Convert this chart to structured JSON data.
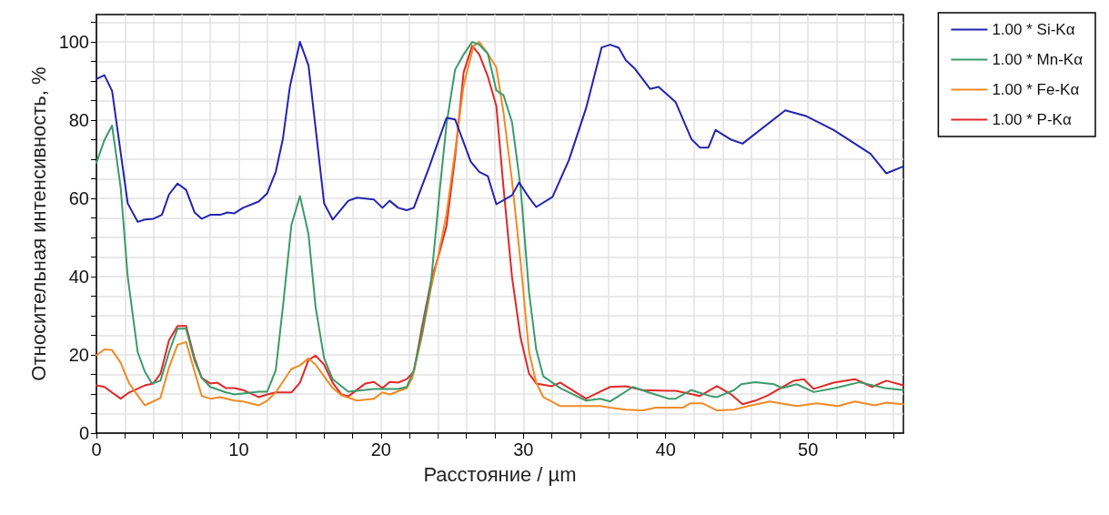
{
  "chart_data": {
    "type": "line",
    "xlabel": "Расстояние / µm",
    "ylabel": "Относительная интенсивность, %",
    "xlim": [
      0,
      56.7
    ],
    "ylim": [
      0,
      107
    ],
    "xticks": [
      0,
      {
        "value": 2,
        "label": null
      },
      {
        "value": 4,
        "label": null
      },
      {
        "value": 6,
        "label": null
      },
      {
        "value": 8,
        "label": null
      },
      10,
      {
        "value": 12,
        "label": null
      },
      {
        "value": 14,
        "label": null
      },
      {
        "value": 16,
        "label": null
      },
      {
        "value": 18,
        "label": null
      },
      20,
      {
        "value": 22,
        "label": null
      },
      {
        "value": 24,
        "label": null
      },
      {
        "value": 26,
        "label": null
      },
      {
        "value": 28,
        "label": null
      },
      30,
      {
        "value": 32,
        "label": null
      },
      {
        "value": 34,
        "label": null
      },
      {
        "value": 36,
        "label": null
      },
      {
        "value": 38,
        "label": null
      },
      40,
      {
        "value": 42,
        "label": null
      },
      {
        "value": 44,
        "label": null
      },
      {
        "value": 46,
        "label": null
      },
      {
        "value": 48,
        "label": null
      },
      50,
      {
        "value": 52,
        "label": null
      },
      {
        "value": 54,
        "label": null
      },
      {
        "value": 56,
        "label": null
      }
    ],
    "yticks": [
      0,
      {
        "value": 5,
        "label": null
      },
      {
        "value": 10,
        "label": null
      },
      {
        "value": 15,
        "label": null
      },
      20,
      {
        "value": 25,
        "label": null
      },
      {
        "value": 30,
        "label": null
      },
      {
        "value": 35,
        "label": null
      },
      40,
      {
        "value": 45,
        "label": null
      },
      {
        "value": 50,
        "label": null
      },
      {
        "value": 55,
        "label": null
      },
      60,
      {
        "value": 65,
        "label": null
      },
      {
        "value": 70,
        "label": null
      },
      {
        "value": 75,
        "label": null
      },
      80,
      {
        "value": 85,
        "label": null
      },
      {
        "value": 90,
        "label": null
      },
      {
        "value": 95,
        "label": null
      },
      100,
      {
        "value": 105,
        "label": null
      }
    ],
    "grid": true,
    "legend": "top right",
    "marker": "none",
    "line_style": "solid",
    "series": [
      {
        "name": "1.00 * Si-Kα",
        "color": "#2323b0",
        "x": [
          0,
          0.56,
          1.1,
          2.2,
          2.9,
          3.4,
          4,
          4.6,
          5.1,
          5.7,
          6.3,
          6.9,
          7.4,
          8,
          8.7,
          9.2,
          9.7,
          10.3,
          11.4,
          12,
          12.6,
          13.1,
          13.6,
          14.3,
          14.9,
          16,
          16.6,
          17.7,
          18.3,
          19.5,
          20.1,
          20.6,
          21.2,
          21.8,
          22.3,
          23.4,
          24.6,
          25.2,
          26.3,
          26.9,
          27.5,
          28.1,
          29.2,
          29.7,
          30.4,
          30.9,
          32.05,
          33.2,
          34.4,
          35.5,
          36.1,
          36.7,
          37.2,
          37.8,
          38.9,
          39.5,
          40.7,
          41.8,
          42.4,
          43,
          43.5,
          44.6,
          45.4,
          48.4,
          49.9,
          51.8,
          54.4,
          55.5,
          56.7
        ],
        "values": [
          90.5,
          91.5,
          87.5,
          58.7,
          54,
          54.6,
          54.8,
          55.8,
          61,
          63.8,
          62.2,
          56.4,
          54.8,
          55.8,
          55.8,
          56.4,
          56.2,
          57.6,
          59.2,
          61.3,
          66.8,
          75.2,
          88.7,
          100,
          94,
          58.7,
          54.6,
          59.4,
          60.2,
          59.7,
          57.6,
          59.4,
          57.6,
          57,
          57.6,
          68.2,
          80.6,
          80.2,
          69.4,
          66.8,
          65.7,
          58.5,
          60.8,
          64.1,
          60.2,
          57.8,
          60.4,
          69.8,
          83,
          98.6,
          99.3,
          98.5,
          95.3,
          93.3,
          88,
          88.5,
          84.6,
          75.2,
          73,
          73,
          77.5,
          75,
          74,
          82.5,
          81,
          77.5,
          71.4,
          66.4,
          68.2
        ]
      },
      {
        "name": "1.00 * Mn-Kα",
        "color": "#3b9a6b",
        "x": [
          0,
          0.56,
          1.1,
          1.7,
          2.2,
          2.9,
          3.4,
          3.9,
          4.5,
          5.1,
          5.7,
          6.3,
          6.9,
          7.4,
          8,
          9.1,
          9.7,
          11.4,
          12,
          12.6,
          13.1,
          13.7,
          14.3,
          14.9,
          15.4,
          16,
          16.6,
          17.7,
          19.5,
          21.2,
          21.8,
          22.3,
          22.9,
          23.5,
          24.1,
          24.6,
          25.2,
          25.8,
          26.4,
          26.9,
          27.5,
          28.1,
          28.6,
          29.2,
          29.8,
          30.4,
          30.9,
          31.4,
          32.6,
          34.4,
          35.4,
          36.1,
          37.7,
          38.8,
          40.2,
          40.7,
          41.8,
          43.1,
          43.6,
          44.8,
          45.3,
          46.3,
          47.6,
          48.2,
          49.2,
          50.4,
          51.9,
          53.6,
          55.4,
          56.7
        ],
        "values": [
          69.1,
          74.9,
          78.6,
          62.9,
          39.9,
          20.7,
          15.7,
          12.7,
          13.4,
          20.7,
          26.7,
          26.7,
          18.4,
          14.1,
          11.8,
          10.4,
          9.9,
          10.6,
          10.6,
          16.1,
          32.2,
          53.2,
          60.6,
          50.9,
          32.2,
          19.1,
          13.8,
          10.6,
          11.3,
          11.3,
          11.8,
          16.1,
          26,
          38.2,
          61.3,
          79,
          92.9,
          96.8,
          100,
          99.3,
          97,
          87.6,
          86.4,
          79.5,
          62.9,
          35.9,
          21.4,
          14.5,
          11.5,
          8.3,
          8.8,
          8.1,
          11.8,
          10.4,
          8.8,
          8.8,
          11,
          9.5,
          9.2,
          11,
          12.5,
          13,
          12.5,
          11.5,
          12.5,
          10.5,
          11.5,
          13,
          11.5,
          11
        ]
      },
      {
        "name": "1.00 * Fe-Kα",
        "color": "#f08a24",
        "x": [
          0,
          0.56,
          1.1,
          1.7,
          2.3,
          3.4,
          4.5,
          5.1,
          5.7,
          6.3,
          6.9,
          7.4,
          8,
          8.7,
          9.7,
          10.3,
          11.4,
          12,
          12.6,
          13.7,
          14.3,
          14.9,
          15.4,
          16,
          16.6,
          17.2,
          18.3,
          19.5,
          20.1,
          20.6,
          21.8,
          22.2,
          22.9,
          23.5,
          24.1,
          24.6,
          25.2,
          25.8,
          26.5,
          26.9,
          27.5,
          28.1,
          28.6,
          29.2,
          29.8,
          30.4,
          30.9,
          31.4,
          32.6,
          34.4,
          35.4,
          36.1,
          37.2,
          38.4,
          39.3,
          41.2,
          41.7,
          42.6,
          43.6,
          44.8,
          45.8,
          47.3,
          49.2,
          50.6,
          52.1,
          53.3,
          54.7,
          55.5,
          56.7
        ],
        "values": [
          19.9,
          21.4,
          21.2,
          18,
          12.7,
          7.1,
          9,
          16.8,
          22.6,
          23.3,
          15.7,
          9.5,
          8.8,
          9.2,
          8.3,
          8.1,
          7.1,
          8.3,
          10.4,
          16.4,
          17.3,
          19.1,
          17.5,
          14.5,
          11.5,
          9.7,
          8.3,
          8.8,
          10.4,
          9.9,
          11.5,
          14.1,
          25.3,
          36.9,
          46.8,
          56,
          72.1,
          88.9,
          99,
          100,
          97,
          93.5,
          82,
          64.5,
          43.8,
          20.7,
          12.9,
          9.2,
          6.9,
          6.9,
          6.9,
          6.5,
          6,
          5.8,
          6.5,
          6.5,
          7.6,
          7.6,
          5.8,
          6,
          6.9,
          8.1,
          6.9,
          7.6,
          6.9,
          8.1,
          7.1,
          7.8,
          7.4
        ]
      },
      {
        "name": "1.00 * P-Kα",
        "color": "#e02828",
        "x": [
          0,
          0.56,
          1.7,
          2.3,
          3.4,
          4,
          4.5,
          5.1,
          5.7,
          6.3,
          6.9,
          7.4,
          8,
          8.5,
          9.1,
          9.7,
          10.3,
          11.4,
          12,
          12.6,
          13.7,
          14.3,
          14.9,
          15.4,
          16,
          16.6,
          17.2,
          17.7,
          18.9,
          19.5,
          20.1,
          20.6,
          21.2,
          21.8,
          22.3,
          22.9,
          23.5,
          24.1,
          24.6,
          25.2,
          25.8,
          26.4,
          26.9,
          27.5,
          28.1,
          28.6,
          29.2,
          29.8,
          30.4,
          30.9,
          32,
          32.6,
          34.4,
          35.4,
          36.1,
          37.2,
          38.4,
          40.2,
          40.7,
          42.4,
          43.6,
          44.6,
          45.4,
          46.3,
          47.2,
          48.2,
          49,
          49.7,
          50.4,
          51.8,
          53.3,
          54.5,
          55.5,
          56.7
        ],
        "values": [
          12.2,
          11.8,
          8.8,
          10.4,
          12.2,
          12.7,
          15.2,
          23.7,
          27.4,
          27.4,
          19.1,
          14.1,
          12.7,
          12.9,
          11.5,
          11.5,
          11,
          9.2,
          9.9,
          10.4,
          10.4,
          12.9,
          18.7,
          19.8,
          17.5,
          12.9,
          9.9,
          9.4,
          12.7,
          13.1,
          11.5,
          13.1,
          12.9,
          13.8,
          15.7,
          27.6,
          38.7,
          46.1,
          53,
          70.5,
          92.2,
          99,
          96.8,
          91.2,
          83.6,
          62.9,
          39.9,
          24.4,
          15.2,
          12.7,
          12,
          12.9,
          8.8,
          10.6,
          11.8,
          12,
          11,
          10.8,
          10.8,
          9.5,
          12,
          9.9,
          7.4,
          8.3,
          9.7,
          11.8,
          13.4,
          13.8,
          11.3,
          12.9,
          13.8,
          11.8,
          13.4,
          12.2
        ]
      }
    ]
  }
}
